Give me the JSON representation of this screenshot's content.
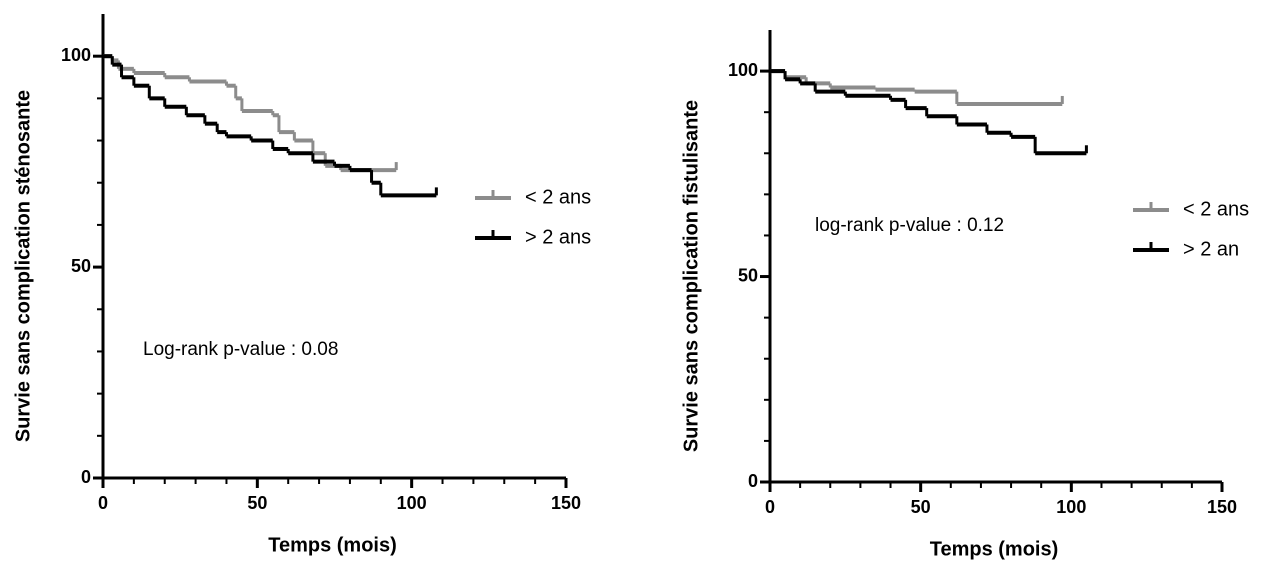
{
  "chart_data": [
    {
      "type": "step",
      "ylabel": "Survie sans complication sténosante",
      "xlabel": "Temps (mois)",
      "annotation": "Log-rank p-value : 0.08",
      "xlim": [
        0,
        150
      ],
      "ylim": [
        0,
        110
      ],
      "xticks": [
        0,
        50,
        100,
        150
      ],
      "yticks": [
        0,
        50,
        100
      ],
      "xminorticks": [
        10,
        20,
        30,
        40,
        60,
        70,
        80,
        90,
        110,
        120,
        130,
        140
      ],
      "yminorticks": [
        10,
        20,
        30,
        40,
        60,
        70,
        80,
        90
      ],
      "series": [
        {
          "name": "< 2 ans",
          "color": "#8c8c8c",
          "x": [
            0,
            3,
            5,
            10,
            20,
            28,
            40,
            43,
            45,
            55,
            57,
            62,
            68,
            72,
            77,
            95
          ],
          "values": [
            100,
            99,
            97,
            96,
            95,
            94,
            93,
            90,
            87,
            86,
            82,
            80,
            77,
            74,
            73,
            73
          ]
        },
        {
          "name": "> 2 ans",
          "color": "#000000",
          "x": [
            0,
            3,
            6,
            10,
            15,
            20,
            27,
            33,
            37,
            40,
            48,
            55,
            60,
            68,
            75,
            80,
            87,
            90,
            108
          ],
          "values": [
            100,
            98,
            95,
            93,
            90,
            88,
            86,
            84,
            82,
            81,
            80,
            78,
            77,
            75,
            74,
            73,
            70,
            67,
            67
          ]
        }
      ]
    },
    {
      "type": "step",
      "ylabel": "Survie sans complication fistulisante",
      "xlabel": "Temps (mois)",
      "annotation": "log-rank p-value : 0.12",
      "xlim": [
        0,
        150
      ],
      "ylim": [
        0,
        110
      ],
      "xticks": [
        0,
        50,
        100,
        150
      ],
      "yticks": [
        0,
        50,
        100
      ],
      "xminorticks": [
        10,
        20,
        30,
        40,
        60,
        70,
        80,
        90,
        110,
        120,
        130,
        140
      ],
      "yminorticks": [
        10,
        20,
        30,
        40,
        60,
        70,
        80,
        90
      ],
      "series": [
        {
          "name": "< 2 ans",
          "color": "#8c8c8c",
          "x": [
            0,
            5,
            12,
            20,
            35,
            48,
            62,
            97
          ],
          "values": [
            100,
            98.5,
            97,
            96,
            95.5,
            95,
            92,
            92
          ]
        },
        {
          "name": "> 2 an",
          "color": "#000000",
          "x": [
            0,
            5,
            10,
            15,
            25,
            40,
            45,
            52,
            62,
            72,
            80,
            88,
            105
          ],
          "values": [
            100,
            98,
            97,
            95,
            94,
            93,
            91,
            89,
            87,
            85,
            84,
            80,
            80
          ]
        }
      ]
    }
  ]
}
